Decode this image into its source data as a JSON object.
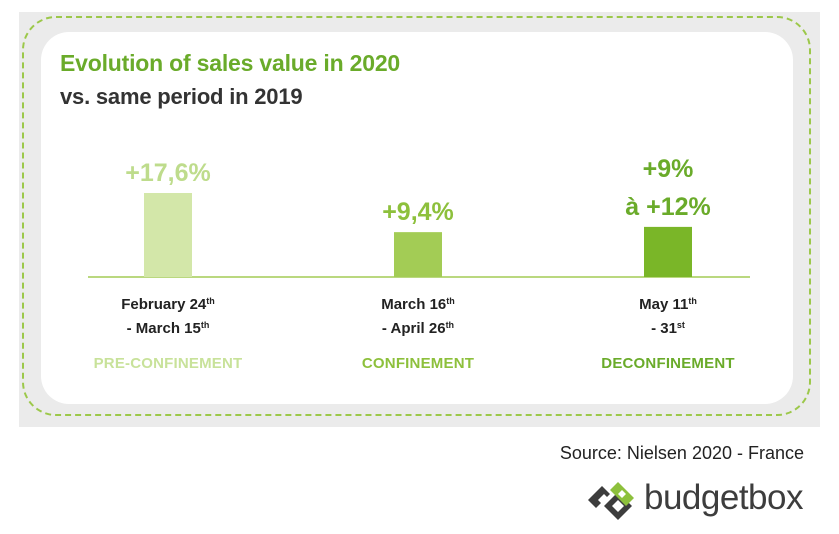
{
  "title": "Evolution of sales value in 2020",
  "subtitle": "vs. same period in 2019",
  "chart_data": {
    "type": "bar",
    "categories": [
      "February 24th - March 15th",
      "March 16th - April 26th",
      "May 11th - 31st"
    ],
    "values": [
      17.6,
      9.4,
      10.5
    ],
    "data_labels": [
      [
        "+17,6%"
      ],
      [
        "+9,4%"
      ],
      [
        "+9%",
        "à +12%"
      ]
    ],
    "range_note": "third period shown as a range +9% to +12%",
    "phases": [
      "PRE-CONFINEMENT",
      "CONFINEMENT",
      "DECONFINEMENT"
    ],
    "colors": [
      "#d3e7a9",
      "#a3cc55",
      "#7ab628"
    ],
    "phase_colors": [
      "#c8e29a",
      "#8dc03c",
      "#6aab2a"
    ],
    "label_colors": [
      "#bedc8c",
      "#8dc03c",
      "#6aab2a"
    ],
    "ylim": [
      0,
      17.6
    ],
    "grid": false,
    "legend": "none",
    "title": "Evolution of sales value in 2020",
    "subtitle": "vs. same period in 2019"
  },
  "periods": [
    {
      "line1": "February 24",
      "sup1": "th",
      "line2": "- March 15",
      "sup2": "th"
    },
    {
      "line1": "March 16",
      "sup1": "th",
      "line2": "- April 26",
      "sup2": "th"
    },
    {
      "line1": "May 11",
      "sup1": "th",
      "line2": "- 31",
      "sup2": "st"
    }
  ],
  "source": "Source: Nielsen 2020 - France",
  "logo": {
    "text": "budgetbox",
    "icon": "budgetbox-logo-icon",
    "colors": [
      "#3d3d3d",
      "#8dc03c"
    ]
  }
}
